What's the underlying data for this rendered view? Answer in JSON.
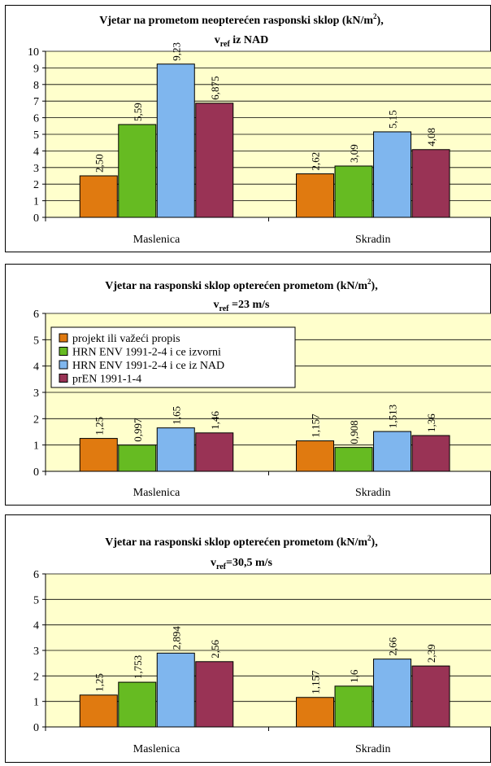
{
  "colors": {
    "plot_bg": "#FFFFCC",
    "series": [
      "#E07A10",
      "#66BB22",
      "#7FB6EE",
      "#993355"
    ]
  },
  "chart_data": [
    {
      "type": "bar",
      "title_main": "Vjetar na prometom neopterećen rasponski sklop (kN/m",
      "title_sup": "2",
      "title_end": "),",
      "subtitle_v": "v",
      "subtitle_sub": "ref",
      "subtitle_rest": " iz NAD",
      "categories": [
        "Maslenica",
        "Skradin"
      ],
      "ylim": [
        0,
        10
      ],
      "yticks": [
        0,
        1,
        2,
        3,
        4,
        5,
        6,
        7,
        8,
        9,
        10
      ],
      "grid": true,
      "legend": false,
      "series": [
        {
          "values": [
            2.5,
            2.62
          ],
          "labels": [
            "2,50",
            "2,62"
          ]
        },
        {
          "values": [
            5.59,
            3.09
          ],
          "labels": [
            "5,59",
            "3,09"
          ]
        },
        {
          "values": [
            9.23,
            5.15
          ],
          "labels": [
            "9,23",
            "5,15"
          ]
        },
        {
          "values": [
            6.875,
            4.08
          ],
          "labels": [
            "6,875",
            "4,08"
          ]
        }
      ]
    },
    {
      "type": "bar",
      "title_main": "Vjetar na rasponski sklop opterećen prometom (kN/m",
      "title_sup": "2",
      "title_end": "),",
      "subtitle_v": "v",
      "subtitle_sub": "ref",
      "subtitle_rest": " =23 m/s",
      "categories": [
        "Maslenica",
        "Skradin"
      ],
      "ylim": [
        0,
        6
      ],
      "yticks": [
        0,
        1,
        2,
        3,
        4,
        5,
        6
      ],
      "grid": true,
      "legend": true,
      "legend_position": "top-left",
      "series": [
        {
          "name": "projekt ili važeći propis",
          "values": [
            1.25,
            1.157
          ],
          "labels": [
            "1,25",
            "1,157"
          ]
        },
        {
          "name": "HRN ENV 1991-2-4 i ce izvorni",
          "values": [
            0.997,
            0.908
          ],
          "labels": [
            "0,997",
            "0,908"
          ]
        },
        {
          "name": "HRN ENV 1991-2-4 i ce iz NAD",
          "values": [
            1.65,
            1.513
          ],
          "labels": [
            "1,65",
            "1,513"
          ]
        },
        {
          "name": "prEN 1991-1-4",
          "values": [
            1.46,
            1.36
          ],
          "labels": [
            "1,46",
            "1,36"
          ]
        }
      ]
    },
    {
      "type": "bar",
      "title_main": "Vjetar na rasponski sklop opterećen prometom (kN/m",
      "title_sup": "2",
      "title_end": "),",
      "subtitle_v": "v",
      "subtitle_sub": "ref",
      "subtitle_rest": "=30,5 m/s",
      "categories": [
        "Maslenica",
        "Skradin"
      ],
      "ylim": [
        0,
        6
      ],
      "yticks": [
        0,
        1,
        2,
        3,
        4,
        5,
        6
      ],
      "grid": true,
      "legend": false,
      "series": [
        {
          "values": [
            1.25,
            1.157
          ],
          "labels": [
            "1,25",
            "1,157"
          ]
        },
        {
          "values": [
            1.753,
            1.6
          ],
          "labels": [
            "1,753",
            "1,6"
          ]
        },
        {
          "values": [
            2.894,
            2.66
          ],
          "labels": [
            "2,894",
            "2,66"
          ]
        },
        {
          "values": [
            2.56,
            2.39
          ],
          "labels": [
            "2,56",
            "2,39"
          ]
        }
      ]
    }
  ]
}
